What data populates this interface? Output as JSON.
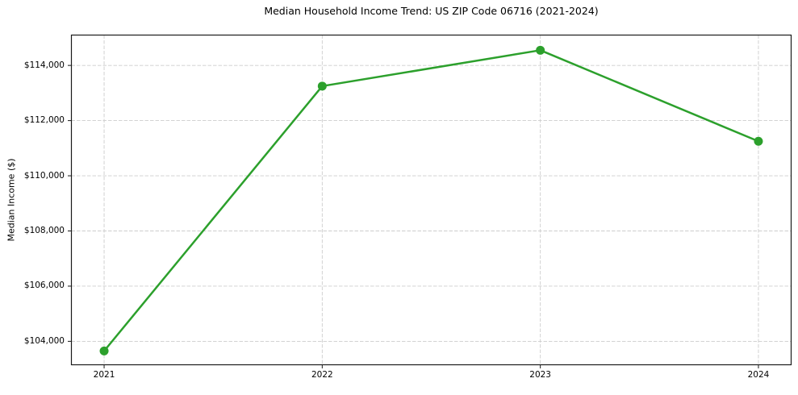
{
  "figure": {
    "background": "#ffffff"
  },
  "chart_data": {
    "type": "line",
    "title": "Median Household Income Trend: US ZIP Code 06716 (2021-2024)",
    "xlabel": "",
    "ylabel": "Median Income ($)",
    "categories": [
      "2021",
      "2022",
      "2023",
      "2024"
    ],
    "x": [
      2021,
      2022,
      2023,
      2024
    ],
    "values": [
      103650,
      113250,
      114550,
      111250
    ],
    "xlim": [
      2020.85,
      2024.15
    ],
    "ylim": [
      103150,
      115100
    ],
    "yticks": [
      {
        "value": 104000,
        "label": "$104,000"
      },
      {
        "value": 106000,
        "label": "$106,000"
      },
      {
        "value": 108000,
        "label": "$108,000"
      },
      {
        "value": 110000,
        "label": "$110,000"
      },
      {
        "value": 112000,
        "label": "$112,000"
      },
      {
        "value": 114000,
        "label": "$114,000"
      }
    ],
    "xticks": [
      {
        "value": 2021,
        "label": "2021"
      },
      {
        "value": 2022,
        "label": "2022"
      },
      {
        "value": 2023,
        "label": "2023"
      },
      {
        "value": 2024,
        "label": "2024"
      }
    ],
    "grid": true,
    "grid_style": "dashed",
    "legend_position": "none",
    "colors": {
      "line": "#2ca02c",
      "marker": "#2ca02c",
      "grid": "#cdcdcd",
      "spine": "#1a1a1a",
      "tick": "#1a1a1a",
      "text": "#000000",
      "background": "#ffffff"
    },
    "marker": "circle",
    "marker_radius": 5.5,
    "line_width": 2.5
  }
}
